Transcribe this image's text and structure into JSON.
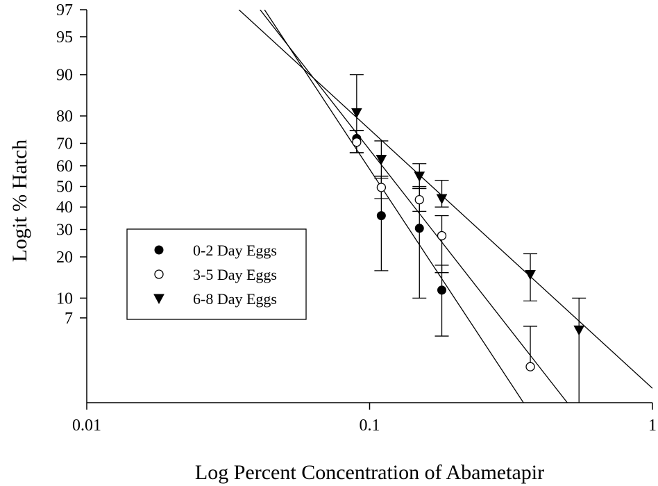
{
  "chart_data": {
    "type": "scatter",
    "title": "",
    "xlabel": "Log Percent Concentration of Abametapir",
    "ylabel": "Logit % Hatch",
    "x_scale": "log",
    "y_scale": "logit",
    "xlim": [
      0.01,
      1
    ],
    "ylim": [
      1.4,
      97
    ],
    "x_ticks": [
      {
        "value": 0.01,
        "label": "0.01"
      },
      {
        "value": 0.1,
        "label": "0.1"
      },
      {
        "value": 1,
        "label": "1"
      }
    ],
    "y_ticks": [
      {
        "value": 97,
        "label": "97"
      },
      {
        "value": 95,
        "label": "95"
      },
      {
        "value": 90,
        "label": "90"
      },
      {
        "value": 80,
        "label": "80"
      },
      {
        "value": 70,
        "label": "70"
      },
      {
        "value": 60,
        "label": "60"
      },
      {
        "value": 50,
        "label": "50"
      },
      {
        "value": 40,
        "label": "40"
      },
      {
        "value": 30,
        "label": "30"
      },
      {
        "value": 20,
        "label": "20"
      },
      {
        "value": 10,
        "label": "10"
      },
      {
        "value": 7,
        "label": "7"
      }
    ],
    "legend_position": "left",
    "series": [
      {
        "name": "0-2 Day Eggs",
        "marker": "filled-circle",
        "points": [
          {
            "x": 0.09,
            "y": 72,
            "err_low": 66,
            "err_high": 75
          },
          {
            "x": 0.11,
            "y": 36,
            "err_low": 16,
            "err_high": 55
          },
          {
            "x": 0.15,
            "y": 30.5,
            "err_low": 10,
            "err_high": 50
          },
          {
            "x": 0.18,
            "y": 11.5,
            "err_low": 5,
            "err_high": 17.5
          }
        ],
        "fit": [
          [
            0.0425,
            97
          ],
          [
            0.35,
            1.4
          ]
        ]
      },
      {
        "name": "3-5 Day Eggs",
        "marker": "open-circle",
        "points": [
          {
            "x": 0.09,
            "y": 70.5,
            "err_low": 66,
            "err_high": 75
          },
          {
            "x": 0.11,
            "y": 49.5,
            "err_low": 44,
            "err_high": 55
          },
          {
            "x": 0.15,
            "y": 43.5,
            "err_low": 38,
            "err_high": 49
          },
          {
            "x": 0.18,
            "y": 27.5,
            "err_low": 15.5,
            "err_high": 36
          },
          {
            "x": 0.37,
            "y": 2.8,
            "err_low": 2.8,
            "err_high": 6
          }
        ],
        "fit": [
          [
            0.041,
            97
          ],
          [
            0.5,
            1.4
          ]
        ]
      },
      {
        "name": "6-8 Day Eggs",
        "marker": "filled-triangle-down",
        "points": [
          {
            "x": 0.09,
            "y": 81,
            "err_low": 75,
            "err_high": 90
          },
          {
            "x": 0.11,
            "y": 63,
            "err_low": 54,
            "err_high": 71
          },
          {
            "x": 0.15,
            "y": 55,
            "err_low": 49,
            "err_high": 61
          },
          {
            "x": 0.18,
            "y": 44,
            "err_low": 40,
            "err_high": 53
          },
          {
            "x": 0.37,
            "y": 15,
            "err_low": 9.5,
            "err_high": 21
          },
          {
            "x": 0.55,
            "y": 5.6,
            "err_low": 1.4,
            "err_high": 10
          }
        ],
        "fit": [
          [
            0.0345,
            97
          ],
          [
            1,
            1.85
          ]
        ]
      }
    ]
  }
}
